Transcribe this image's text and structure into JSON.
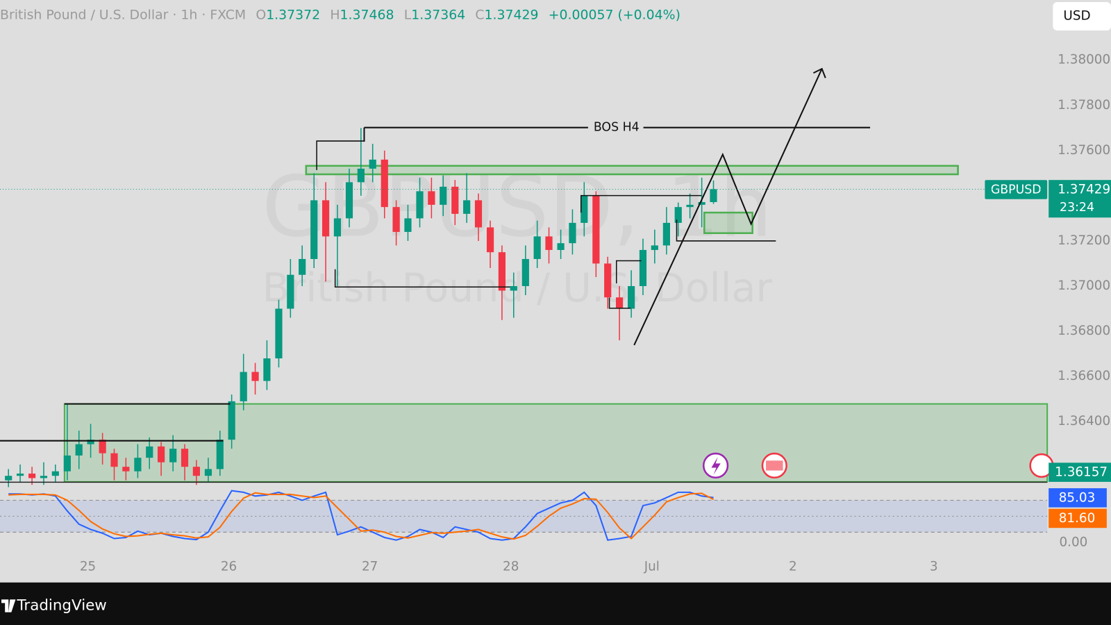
{
  "chart_data": [
    {
      "type": "candlestick",
      "title": "British Pound / U.S. Dollar · 1h · FXCM",
      "ohlc_labels": [
        "O",
        "H",
        "L",
        "C"
      ],
      "change_label": "+0.00057 (+0.04%)",
      "currency": "USD",
      "symbol": "GBPUSD",
      "countdown": "23:24",
      "level": 1.36157,
      "watermark": [
        "GBPUSD, 1h",
        "British Pound / U.S. Dollar"
      ],
      "annotation": "BOS H4",
      "up_color": "#089981",
      "down_color": "#f23645",
      "x": [
        -0.563,
        -0.48,
        -0.396,
        -0.313,
        -0.23,
        -0.146,
        -0.063,
        0.02,
        0.104,
        0.187,
        0.27,
        0.354,
        0.437,
        0.52,
        0.604,
        0.687,
        0.77,
        0.854,
        0.937,
        1.02,
        1.104,
        1.187,
        1.27,
        1.354,
        1.437,
        1.52,
        1.604,
        1.687,
        1.77,
        1.854,
        1.937,
        2.02,
        2.104,
        2.187,
        2.27,
        2.354,
        2.437,
        2.52,
        2.604,
        2.687,
        2.77,
        2.854,
        2.937,
        3.02,
        3.104,
        3.187,
        3.27,
        3.354,
        3.437,
        3.52,
        3.604,
        3.687,
        3.77,
        3.854,
        3.937,
        4.02,
        4.104,
        4.187,
        4.27,
        4.354,
        4.437
      ],
      "open": [
        1.3614,
        1.3616,
        1.3617,
        1.3615,
        1.3616,
        1.3618,
        1.3625,
        1.363,
        1.3632,
        1.3626,
        1.362,
        1.3618,
        1.3624,
        1.3629,
        1.3622,
        1.3628,
        1.362,
        1.3616,
        1.3619,
        1.3632,
        1.3649,
        1.3662,
        1.3658,
        1.3668,
        1.369,
        1.3705,
        1.3712,
        1.3738,
        1.3722,
        1.373,
        1.3746,
        1.3752,
        1.3756,
        1.3735,
        1.3724,
        1.373,
        1.3742,
        1.3736,
        1.3744,
        1.3732,
        1.3738,
        1.3726,
        1.3715,
        1.3698,
        1.37,
        1.3712,
        1.3722,
        1.3716,
        1.3719,
        1.3728,
        1.374,
        1.371,
        1.3695,
        1.369,
        1.37,
        1.3716,
        1.3718,
        1.3728,
        1.3735,
        1.3736,
        1.37372
      ],
      "high": [
        1.3619,
        1.3621,
        1.362,
        1.3622,
        1.3621,
        1.3648,
        1.3636,
        1.3639,
        1.3635,
        1.3628,
        1.3624,
        1.363,
        1.3633,
        1.3631,
        1.3634,
        1.363,
        1.3623,
        1.3624,
        1.3636,
        1.3652,
        1.367,
        1.3666,
        1.3676,
        1.3694,
        1.3712,
        1.3718,
        1.375,
        1.3746,
        1.3736,
        1.3752,
        1.377,
        1.3763,
        1.376,
        1.3738,
        1.3736,
        1.3748,
        1.3748,
        1.3749,
        1.3747,
        1.375,
        1.3741,
        1.3729,
        1.3718,
        1.3706,
        1.3718,
        1.3729,
        1.3726,
        1.3725,
        1.3734,
        1.3746,
        1.3742,
        1.3713,
        1.37,
        1.3707,
        1.3721,
        1.3725,
        1.3735,
        1.3737,
        1.3741,
        1.3748,
        1.37468
      ],
      "low": [
        1.3611,
        1.3613,
        1.3612,
        1.3612,
        1.3613,
        1.3614,
        1.3619,
        1.3624,
        1.3621,
        1.3614,
        1.3614,
        1.3615,
        1.3619,
        1.3616,
        1.3618,
        1.3614,
        1.3612,
        1.3613,
        1.3616,
        1.3628,
        1.3645,
        1.3652,
        1.3654,
        1.3664,
        1.3686,
        1.37,
        1.3708,
        1.3702,
        1.37,
        1.3726,
        1.374,
        1.3746,
        1.373,
        1.3718,
        1.372,
        1.3726,
        1.373,
        1.3731,
        1.3727,
        1.3728,
        1.372,
        1.3708,
        1.3685,
        1.3686,
        1.3696,
        1.3708,
        1.371,
        1.3712,
        1.3714,
        1.3722,
        1.3704,
        1.369,
        1.3676,
        1.3686,
        1.3696,
        1.371,
        1.3714,
        1.3722,
        1.373,
        1.3726,
        1.37364
      ],
      "close": [
        1.3616,
        1.3617,
        1.3615,
        1.3616,
        1.3618,
        1.3625,
        1.363,
        1.3632,
        1.3626,
        1.362,
        1.3618,
        1.3624,
        1.3629,
        1.3622,
        1.3628,
        1.362,
        1.3616,
        1.3619,
        1.3632,
        1.3649,
        1.3662,
        1.3658,
        1.3668,
        1.369,
        1.3705,
        1.3712,
        1.3738,
        1.3722,
        1.373,
        1.3746,
        1.3752,
        1.3756,
        1.3735,
        1.3724,
        1.373,
        1.3742,
        1.3736,
        1.3744,
        1.3732,
        1.3738,
        1.3726,
        1.3715,
        1.3698,
        1.37,
        1.3712,
        1.3722,
        1.3716,
        1.3719,
        1.3728,
        1.374,
        1.371,
        1.3695,
        1.369,
        1.37,
        1.3716,
        1.3718,
        1.3728,
        1.3735,
        1.3736,
        1.37372,
        1.37429
      ],
      "xlim": [
        -0.623,
        6.804
      ],
      "xticks": [
        {
          "value": 0,
          "label": "25"
        },
        {
          "value": 1,
          "label": "26"
        },
        {
          "value": 2,
          "label": "27"
        },
        {
          "value": 3,
          "label": "28"
        },
        {
          "value": 4,
          "label": "Jul"
        },
        {
          "value": 5,
          "label": "2"
        },
        {
          "value": 6,
          "label": "3"
        }
      ],
      "ylim": [
        1.361333,
        1.382667
      ],
      "yticks": [
        {
          "value": 1.38,
          "label": "1.38000"
        },
        {
          "value": 1.378,
          "label": "1.37800"
        },
        {
          "value": 1.376,
          "label": "1.37600"
        },
        {
          "value": 1.372,
          "label": "1.37200"
        },
        {
          "value": 1.37,
          "label": "1.37000"
        },
        {
          "value": 1.368,
          "label": "1.36800"
        },
        {
          "value": 1.366,
          "label": "1.36600"
        },
        {
          "value": 1.364,
          "label": "1.36400"
        }
      ]
    },
    {
      "type": "line",
      "ylim": [
        -18.7,
        112
      ],
      "yticks": [
        {
          "value": 0,
          "label": "0.00"
        }
      ],
      "levels": [
        80,
        50,
        20
      ],
      "band_color": "#2962ff",
      "series": [
        {
          "color": "#2962ff",
          "values": [
            92,
            92,
            90,
            92,
            88,
            60,
            35,
            25,
            18,
            8,
            10,
            22,
            15,
            18,
            12,
            8,
            6,
            20,
            60,
            98,
            95,
            88,
            90,
            95,
            88,
            80,
            88,
            95,
            15,
            22,
            30,
            20,
            10,
            5,
            12,
            25,
            20,
            10,
            30,
            25,
            20,
            8,
            5,
            8,
            30,
            55,
            65,
            75,
            80,
            95,
            70,
            5,
            8,
            12,
            70,
            75,
            85,
            95,
            95,
            88,
            85.03
          ]
        },
        {
          "color": "#ff6d00",
          "values": [
            90,
            91,
            91,
            91,
            90,
            80,
            61,
            40,
            26,
            17,
            12,
            13,
            16,
            18,
            15,
            13,
            9,
            11,
            29,
            59,
            84,
            94,
            91,
            91,
            91,
            88,
            85,
            88,
            66,
            44,
            22,
            24,
            20,
            12,
            9,
            14,
            19,
            18,
            20,
            22,
            25,
            18,
            11,
            7,
            14,
            31,
            50,
            65,
            73,
            83,
            82,
            57,
            28,
            8,
            30,
            52,
            77,
            85,
            92,
            93,
            81.6
          ],
          "value_labels": [
            null,
            null,
            null,
            null,
            null,
            null,
            null,
            null,
            null,
            null,
            null,
            null,
            null,
            null,
            null,
            null,
            null,
            null,
            null,
            null,
            null,
            null,
            null,
            null,
            null,
            null,
            null,
            null,
            null,
            null,
            null,
            null,
            null,
            null,
            null,
            null,
            null,
            null,
            null,
            null,
            null,
            null,
            null,
            null,
            null,
            null,
            null,
            null,
            null,
            null,
            null,
            null,
            null,
            null,
            null,
            null,
            null,
            null,
            null,
            null,
            "81.60"
          ]
        }
      ]
    }
  ],
  "footer": {
    "brand": "TradingView"
  }
}
